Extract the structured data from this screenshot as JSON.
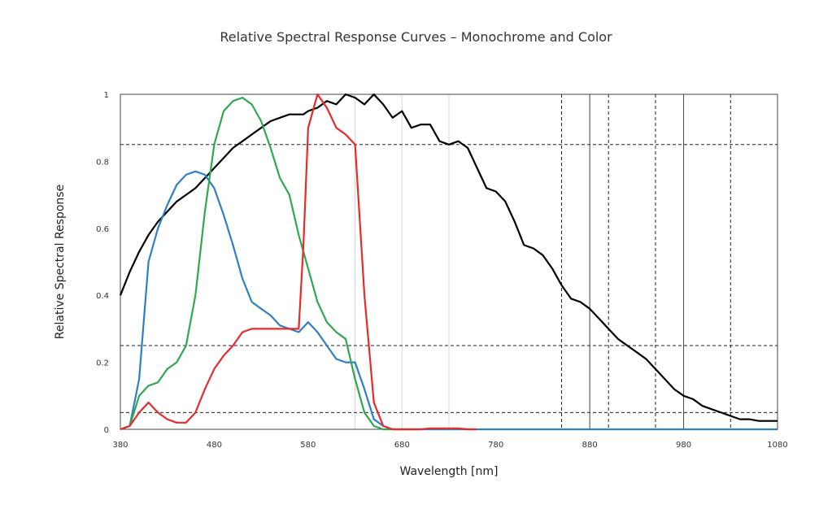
{
  "chart_data": {
    "type": "line",
    "title": "Relative Spectral Response Curves – Monochrome and Color",
    "xlabel": "Wavelength [nm]",
    "ylabel": "Relative Spectral Response",
    "xlim": [
      380,
      1080
    ],
    "ylim": [
      0,
      1
    ],
    "x_ticks": [
      380,
      480,
      580,
      680,
      780,
      880,
      980,
      1080
    ],
    "y_ticks": [
      0,
      0.2,
      0.4,
      0.6,
      0.8,
      1
    ],
    "y_tick_labels": [
      "0",
      "0.2",
      "0.4",
      "0.6",
      "0.8",
      "1"
    ],
    "hlines_dashed": [
      0.05,
      0.25,
      0.85
    ],
    "vlines_dashed": [
      850,
      900,
      950,
      1030
    ],
    "vlines_solid": [
      880,
      980,
      1080
    ],
    "vlines_light": [
      630,
      680,
      730
    ],
    "series": [
      {
        "color": "#000000",
        "x": [
          380,
          390,
          400,
          410,
          420,
          430,
          440,
          450,
          460,
          470,
          480,
          490,
          500,
          510,
          520,
          530,
          540,
          550,
          560,
          570,
          575,
          580,
          590,
          600,
          610,
          620,
          630,
          640,
          650,
          660,
          670,
          680,
          690,
          700,
          710,
          720,
          730,
          740,
          750,
          760,
          770,
          780,
          790,
          800,
          810,
          820,
          830,
          840,
          850,
          860,
          870,
          880,
          890,
          900,
          910,
          920,
          930,
          940,
          950,
          960,
          970,
          980,
          990,
          1000,
          1010,
          1020,
          1030,
          1040,
          1050,
          1060,
          1070,
          1080
        ],
        "y": [
          0.4,
          0.47,
          0.53,
          0.58,
          0.62,
          0.65,
          0.68,
          0.7,
          0.72,
          0.75,
          0.78,
          0.81,
          0.84,
          0.86,
          0.88,
          0.9,
          0.92,
          0.93,
          0.94,
          0.94,
          0.94,
          0.95,
          0.96,
          0.98,
          0.97,
          1.0,
          0.99,
          0.97,
          1.0,
          0.97,
          0.93,
          0.95,
          0.9,
          0.91,
          0.91,
          0.86,
          0.85,
          0.86,
          0.84,
          0.78,
          0.72,
          0.71,
          0.68,
          0.62,
          0.55,
          0.54,
          0.52,
          0.48,
          0.43,
          0.39,
          0.38,
          0.36,
          0.33,
          0.3,
          0.27,
          0.25,
          0.23,
          0.21,
          0.18,
          0.15,
          0.12,
          0.1,
          0.09,
          0.07,
          0.06,
          0.05,
          0.04,
          0.03,
          0.03,
          0.025,
          0.025,
          0.025
        ]
      },
      {
        "color": "#2e7fc4",
        "x": [
          380,
          390,
          400,
          410,
          420,
          430,
          440,
          450,
          460,
          470,
          480,
          490,
          500,
          510,
          520,
          530,
          540,
          550,
          560,
          570,
          580,
          590,
          600,
          610,
          620,
          630,
          640,
          650,
          660,
          670,
          680,
          690,
          700,
          800,
          1080
        ],
        "y": [
          0.0,
          0.01,
          0.15,
          0.5,
          0.6,
          0.67,
          0.73,
          0.76,
          0.77,
          0.76,
          0.72,
          0.64,
          0.55,
          0.45,
          0.38,
          0.36,
          0.34,
          0.31,
          0.3,
          0.29,
          0.32,
          0.29,
          0.25,
          0.21,
          0.2,
          0.2,
          0.12,
          0.03,
          0.01,
          0.0,
          0.0,
          0.0,
          0.0,
          0.0,
          0.0
        ]
      },
      {
        "color": "#2fa84f",
        "x": [
          380,
          390,
          400,
          410,
          420,
          430,
          440,
          450,
          460,
          470,
          480,
          490,
          500,
          510,
          520,
          530,
          540,
          550,
          560,
          570,
          580,
          590,
          600,
          610,
          620,
          630,
          640,
          650,
          660,
          670,
          680,
          690,
          700
        ],
        "y": [
          0.0,
          0.01,
          0.1,
          0.13,
          0.14,
          0.18,
          0.2,
          0.25,
          0.4,
          0.65,
          0.85,
          0.95,
          0.98,
          0.99,
          0.97,
          0.92,
          0.84,
          0.75,
          0.7,
          0.58,
          0.48,
          0.38,
          0.32,
          0.29,
          0.27,
          0.15,
          0.05,
          0.01,
          0.0,
          0.0,
          0.0,
          0.0,
          0.0
        ]
      },
      {
        "color": "#e52b2b",
        "x": [
          380,
          390,
          400,
          410,
          420,
          430,
          440,
          450,
          460,
          470,
          480,
          490,
          500,
          510,
          520,
          530,
          540,
          550,
          560,
          570,
          575,
          580,
          590,
          600,
          610,
          620,
          630,
          640,
          650,
          660,
          670,
          680,
          690,
          700,
          710,
          720,
          730,
          740,
          750,
          760
        ],
        "y": [
          0.0,
          0.01,
          0.05,
          0.08,
          0.05,
          0.03,
          0.02,
          0.02,
          0.05,
          0.12,
          0.18,
          0.22,
          0.25,
          0.29,
          0.3,
          0.3,
          0.3,
          0.3,
          0.3,
          0.3,
          0.55,
          0.9,
          1.0,
          0.96,
          0.9,
          0.88,
          0.85,
          0.4,
          0.08,
          0.01,
          0.0,
          0.0,
          0.0,
          0.0,
          0.003,
          0.003,
          0.003,
          0.003,
          0.0,
          0.0
        ]
      }
    ]
  }
}
